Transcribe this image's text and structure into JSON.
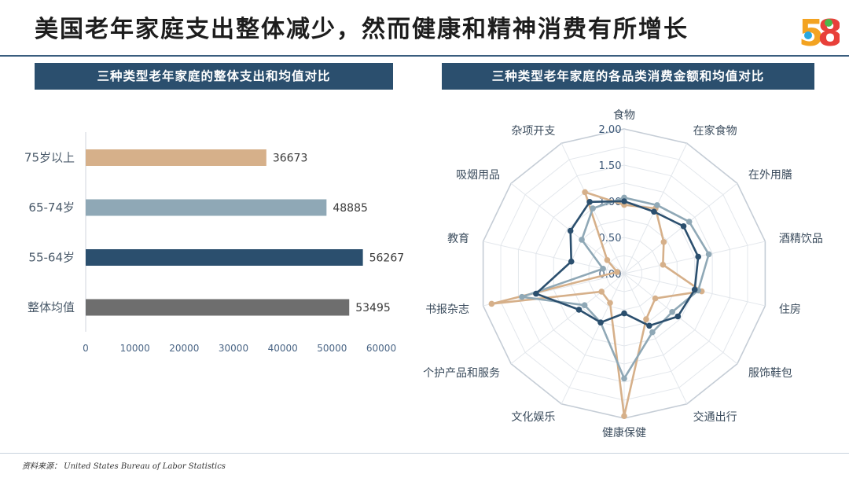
{
  "page": {
    "title": "美国老年家庭支出整体减少，然而健康和精神消费有所增长",
    "source": "资料来源：  United States Bureau of Labor Statistics"
  },
  "logo": {
    "text": "58",
    "colors": [
      "#e8403a",
      "#f3a321",
      "#2aa8e0",
      "#4bb84a"
    ]
  },
  "colors": {
    "age75": "#d6b08a",
    "age65_74": "#8fa8b6",
    "age55_64": "#2b4f6e",
    "overall": "#6e6e6e",
    "header_bg": "#2b4f6e"
  },
  "chart_data": [
    {
      "type": "bar",
      "orientation": "horizontal",
      "title": "三种类型老年家庭的整体支出和均值对比",
      "categories": [
        "75岁以上",
        "65-74岁",
        "55-64岁",
        "整体均值"
      ],
      "values": [
        36673,
        48885,
        56267,
        53495
      ],
      "value_labels": [
        "36673",
        "48885",
        "56267",
        "53495"
      ],
      "xlim": [
        0,
        60000
      ],
      "xticks": [
        "0",
        "10000",
        "20000",
        "30000",
        "40000",
        "50000",
        "60000"
      ],
      "grid": false
    },
    {
      "type": "radar",
      "title": "三种类型老年家庭的各品类消费金额和均值对比",
      "axes": [
        "食物",
        "在家食物",
        "在外用膳",
        "酒精饮品",
        "住房",
        "服饰鞋包",
        "交通出行",
        "健康保健",
        "文化娱乐",
        "个护产品和服务",
        "书报杂志",
        "教育",
        "吸烟用品",
        "杂项开支"
      ],
      "rlim": [
        0,
        2
      ],
      "ring_labels": [
        "0.00",
        "0.50",
        "1.00",
        "1.50",
        "2.00"
      ],
      "series": [
        {
          "values": [
            0.95,
            1.0,
            0.7,
            0.55,
            1.1,
            0.55,
            0.7,
            1.97,
            0.45,
            0.4,
            1.88,
            0.1,
            0.3,
            1.25
          ]
        },
        {
          "values": [
            1.05,
            1.05,
            1.15,
            1.2,
            1.05,
            0.85,
            0.9,
            1.45,
            0.75,
            0.7,
            1.45,
            0.3,
            0.75,
            1.0
          ]
        },
        {
          "values": [
            1.0,
            0.95,
            1.05,
            1.05,
            1.0,
            0.95,
            0.8,
            0.55,
            0.75,
            0.8,
            1.25,
            0.75,
            0.95,
            1.1
          ]
        }
      ]
    }
  ]
}
